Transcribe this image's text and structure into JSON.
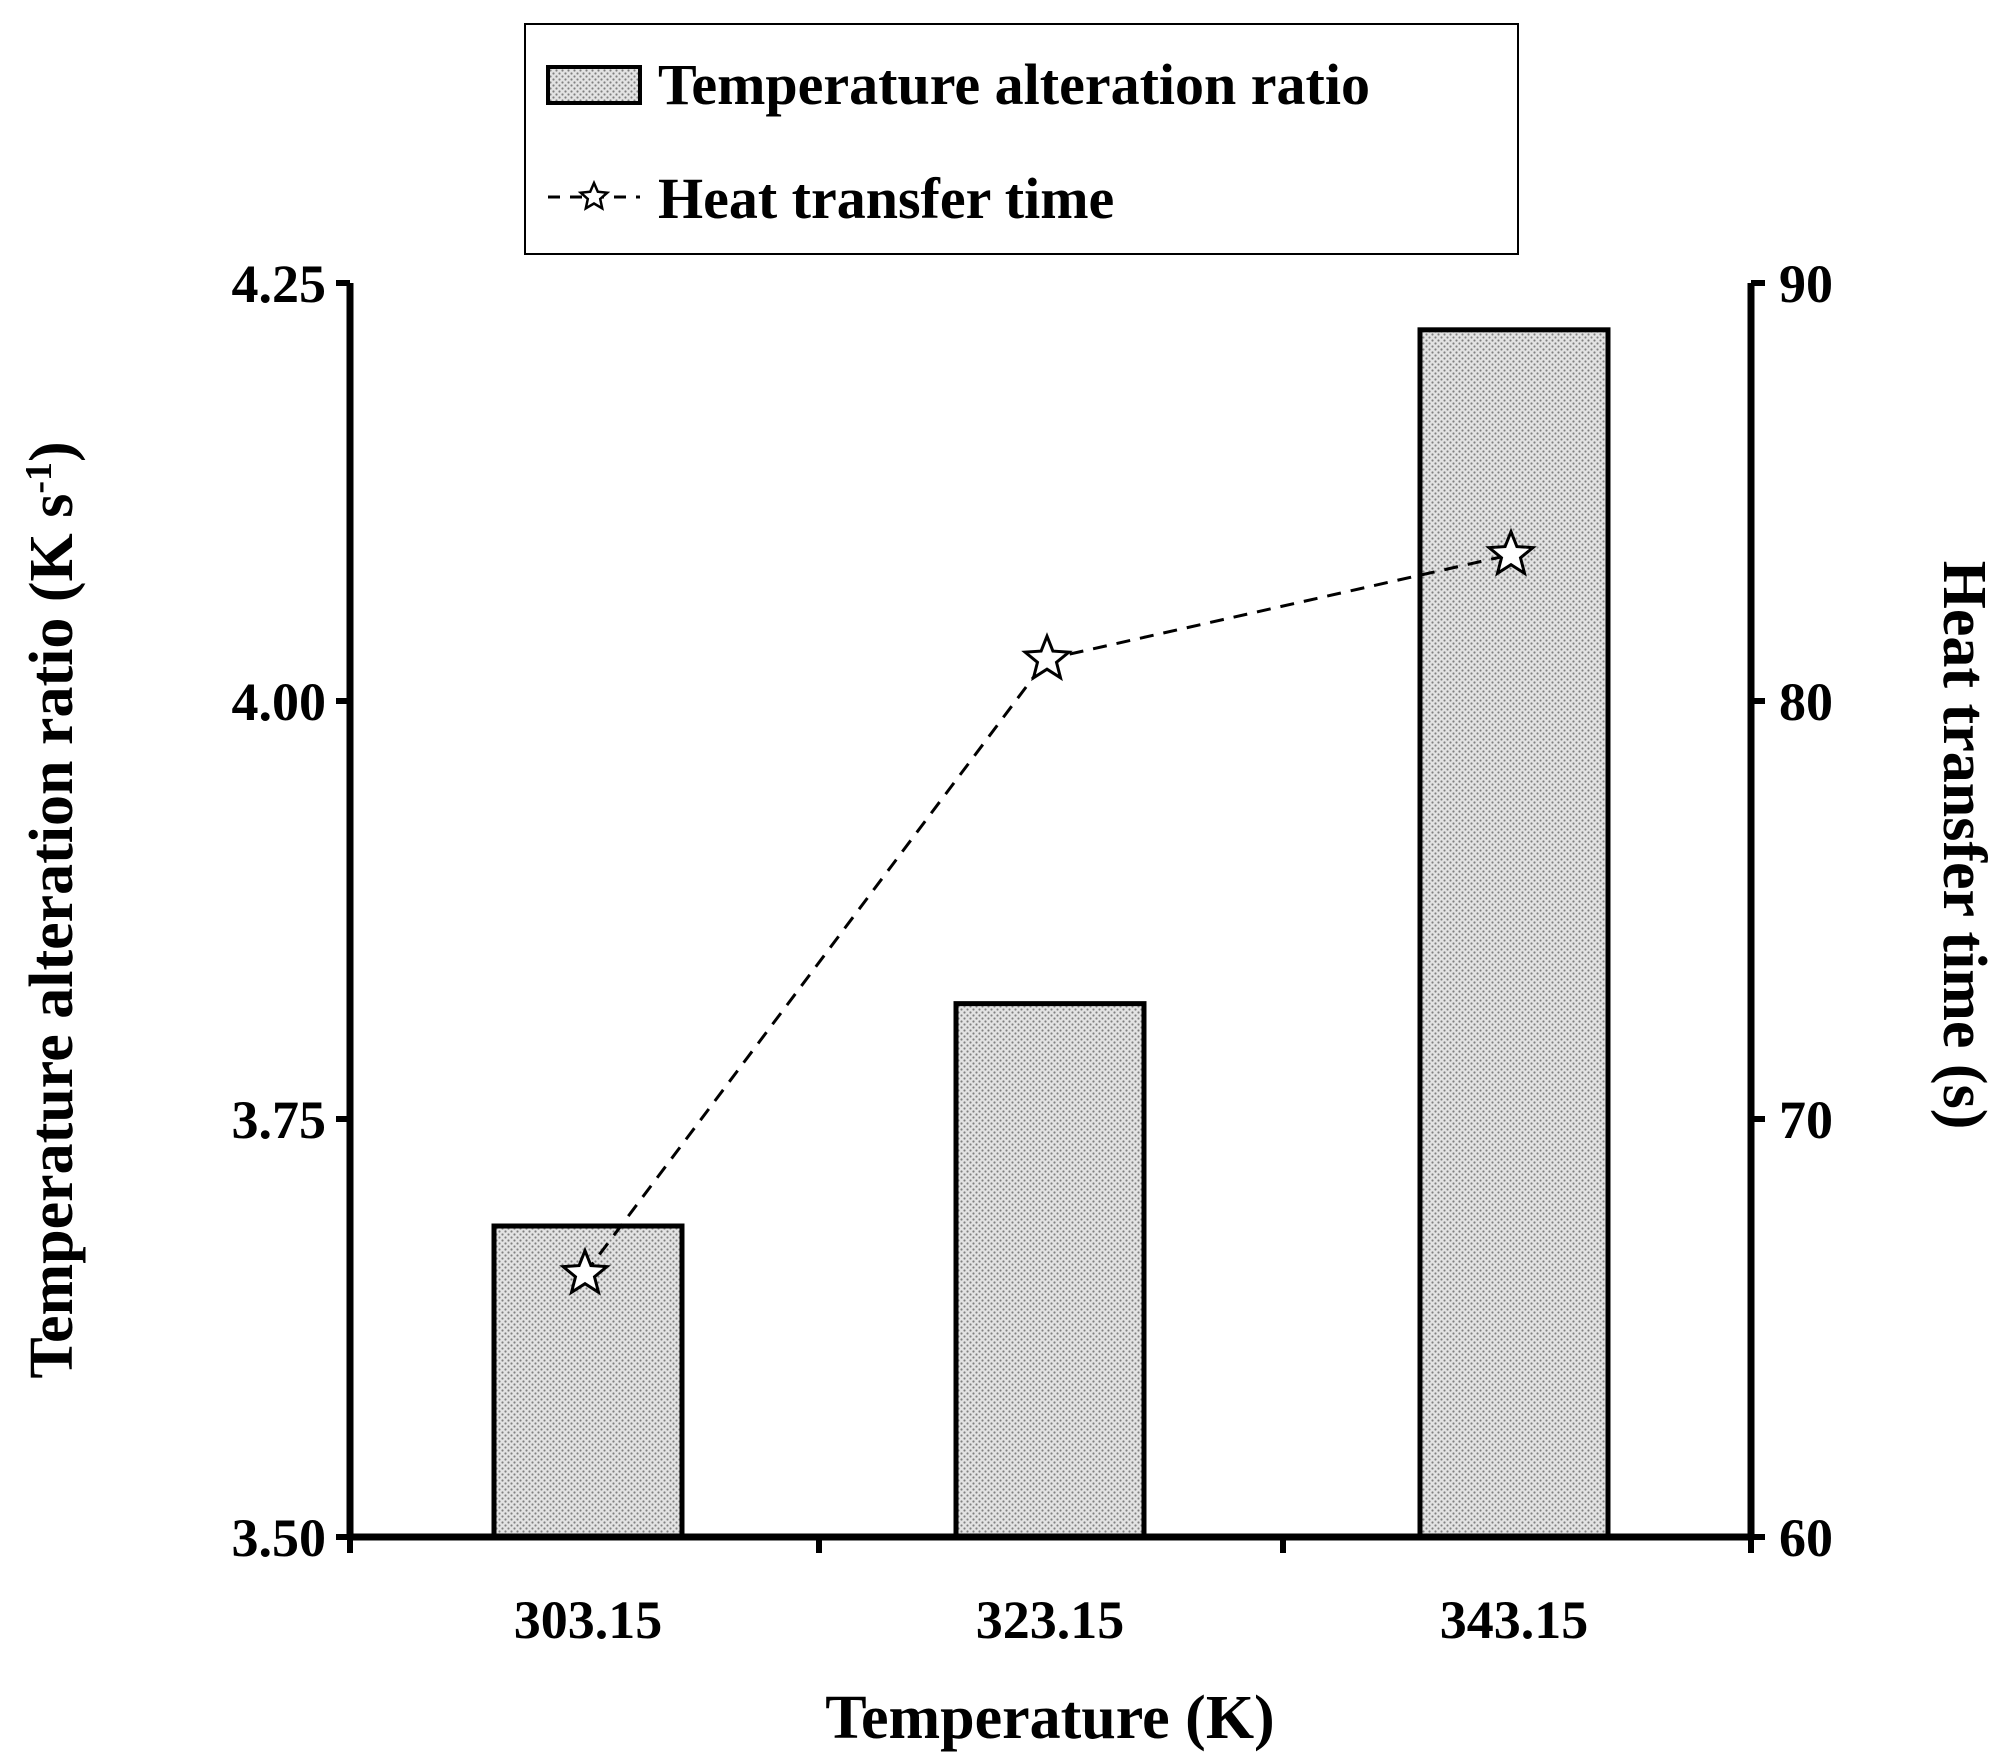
{
  "chart_data": {
    "type": "bar+line",
    "categories": [
      "303.15",
      "323.15",
      "343.15"
    ],
    "series": [
      {
        "name": "Temperature alteration ratio",
        "kind": "bar",
        "axis": "left",
        "values": [
          3.686,
          3.819,
          4.222
        ],
        "fill": "dotted-gray"
      },
      {
        "name": "Heat transfer time",
        "kind": "line",
        "axis": "right",
        "values": [
          66.3,
          81.0,
          83.5
        ],
        "marker": "star",
        "line_style": "dashed"
      }
    ],
    "xlabel": "Temperature (K)",
    "ylabel_left": "Temperature alteration ratio (K s-1)",
    "ylabel_left_parts": {
      "main": "Temperature alteration ratio (K s",
      "sup": "-1",
      "end": ")"
    },
    "ylabel_right": "Heat transfer time (s)",
    "ylim_left": [
      3.5,
      4.25
    ],
    "ylim_right": [
      60,
      90
    ],
    "yticks_left": [
      "3.50",
      "3.75",
      "4.00",
      "4.25"
    ],
    "yticks_right": [
      "60",
      "70",
      "80",
      "90"
    ],
    "legend_position": "top-center",
    "grid": false,
    "colors": {
      "axis": "#000000",
      "bar_fill": "#d9d9d9",
      "bar_dot": "#8a8a8a",
      "line": "#000000"
    }
  }
}
